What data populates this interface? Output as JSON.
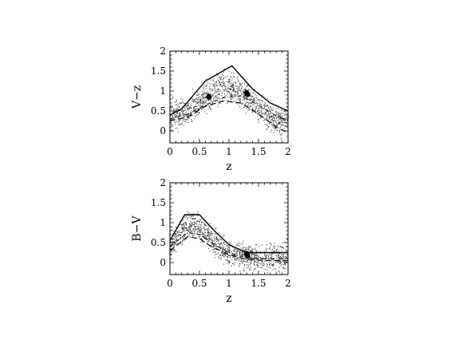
{
  "chart_data": [
    {
      "type": "scatter",
      "title": "",
      "xlabel": "z",
      "ylabel": "V−z",
      "xlim": [
        0,
        2
      ],
      "ylim": [
        -0.3,
        2
      ],
      "xticks": [
        "0",
        "0.5",
        "1",
        "1.5",
        "2"
      ],
      "yticks": [
        "0",
        "0.5",
        "1",
        "1.5",
        "2"
      ],
      "grid": false,
      "series": [
        {
          "style": "solid",
          "x": [
            0.0,
            0.2,
            0.6,
            1.05,
            1.4,
            1.7,
            2.0
          ],
          "y": [
            0.4,
            0.55,
            1.25,
            1.63,
            1.05,
            0.7,
            0.5
          ]
        },
        {
          "style": "dash-dot",
          "x": [
            0.0,
            0.3,
            0.6,
            0.9,
            1.2,
            1.5,
            1.8,
            2.0
          ],
          "y": [
            0.3,
            0.42,
            0.65,
            0.83,
            0.88,
            0.65,
            0.38,
            0.25
          ]
        },
        {
          "style": "long-dash",
          "x": [
            0.0,
            0.3,
            0.6,
            0.9,
            1.2,
            1.5,
            1.8,
            2.0
          ],
          "y": [
            0.25,
            0.35,
            0.62,
            0.75,
            0.7,
            0.42,
            0.1,
            -0.05
          ]
        },
        {
          "style": "large-dots",
          "x": [
            0.66,
            1.3,
            1.31
          ],
          "y": [
            0.85,
            0.95,
            0.92
          ]
        }
      ],
      "scatter_trend": {
        "x": [
          0.0,
          0.3,
          0.6,
          0.9,
          1.1,
          1.3,
          1.5,
          1.75,
          2.0
        ],
        "y": [
          0.35,
          0.5,
          0.85,
          1.15,
          1.05,
          0.85,
          0.55,
          0.3,
          0.2
        ],
        "spread": 0.25
      }
    },
    {
      "type": "scatter",
      "title": "",
      "xlabel": "z",
      "ylabel": "B−V",
      "xlim": [
        0,
        2
      ],
      "ylim": [
        -0.3,
        2
      ],
      "xticks": [
        "0",
        "0.5",
        "1",
        "1.5",
        "2"
      ],
      "yticks": [
        "0",
        "0.5",
        "1",
        "1.5",
        "2"
      ],
      "grid": false,
      "series": [
        {
          "style": "solid",
          "x": [
            0.0,
            0.25,
            0.5,
            0.75,
            1.0,
            1.3,
            1.6,
            2.0
          ],
          "y": [
            0.55,
            1.2,
            1.2,
            0.8,
            0.45,
            0.25,
            0.25,
            0.25
          ]
        },
        {
          "style": "dash-dot",
          "x": [
            0.0,
            0.3,
            0.5,
            0.7,
            1.0,
            1.3,
            1.6,
            2.0
          ],
          "y": [
            0.4,
            0.75,
            0.7,
            0.5,
            0.25,
            0.12,
            0.1,
            0.1
          ]
        },
        {
          "style": "long-dash",
          "x": [
            0.0,
            0.3,
            0.5,
            0.7,
            1.0,
            1.3,
            1.6,
            2.0
          ],
          "y": [
            0.3,
            0.65,
            0.6,
            0.4,
            0.2,
            0.08,
            0.05,
            0.05
          ]
        },
        {
          "style": "large-dots",
          "x": [
            1.3,
            1.31
          ],
          "y": [
            0.22,
            0.18
          ]
        }
      ],
      "scatter_trend": {
        "x": [
          0.0,
          0.2,
          0.4,
          0.6,
          0.8,
          1.0,
          1.3,
          1.6,
          2.0
        ],
        "y": [
          0.45,
          0.8,
          1.0,
          0.75,
          0.45,
          0.25,
          0.15,
          0.12,
          0.15
        ],
        "spread": 0.22
      }
    }
  ]
}
